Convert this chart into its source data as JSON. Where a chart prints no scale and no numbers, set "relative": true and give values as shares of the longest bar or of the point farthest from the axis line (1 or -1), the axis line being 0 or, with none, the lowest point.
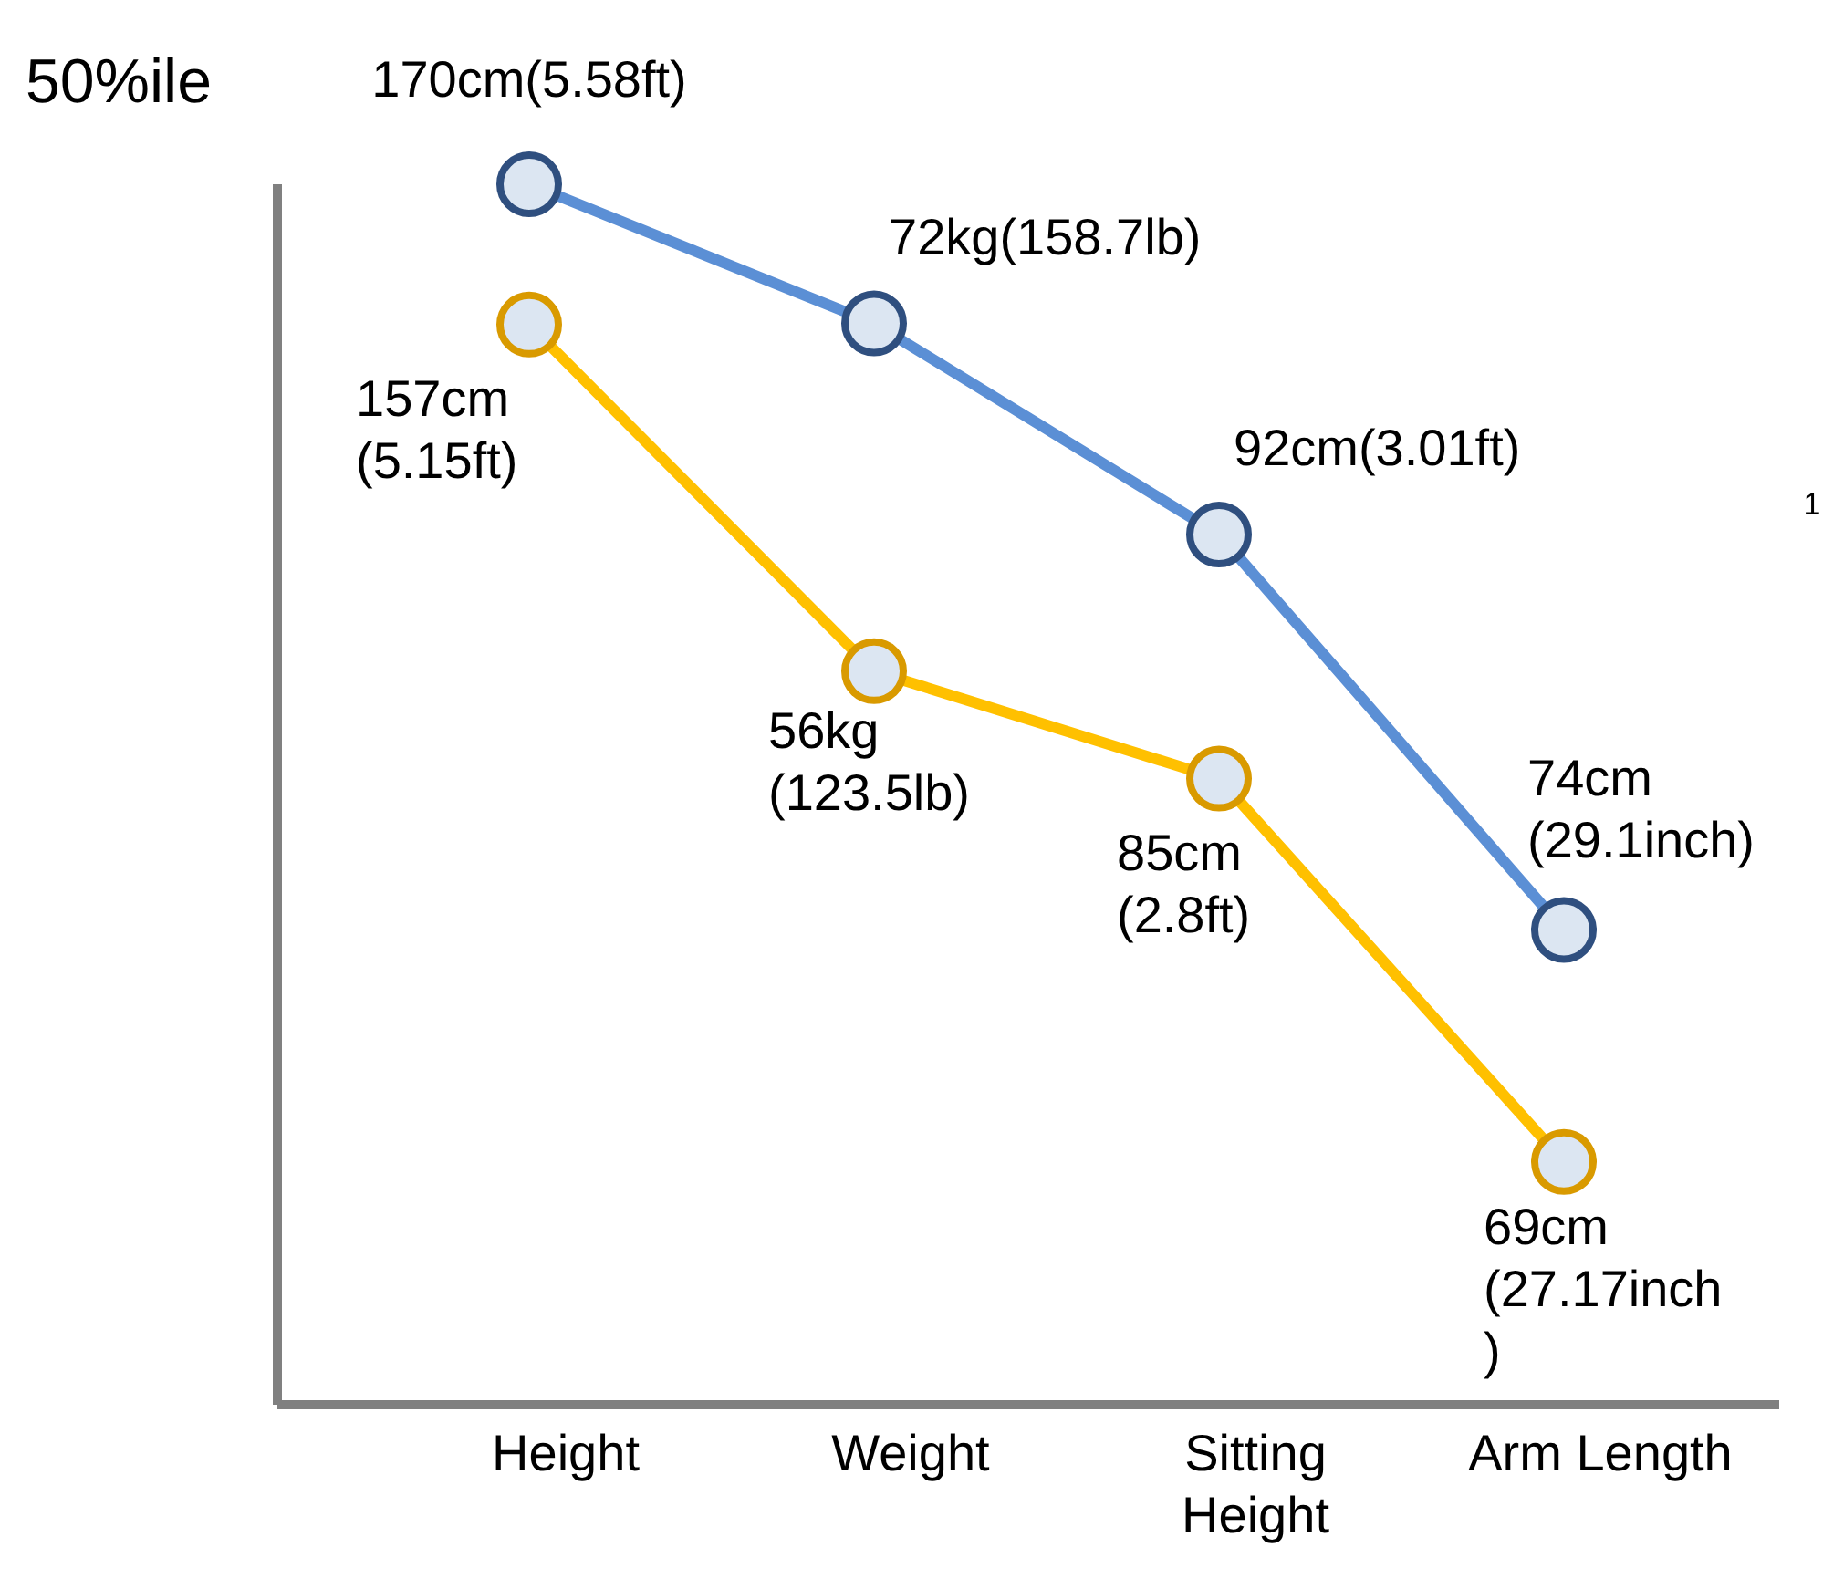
{
  "chart_data": {
    "type": "line",
    "relative": true,
    "ylabel": "50%ile",
    "categories": [
      "Height",
      "Weight",
      "Sitting Height",
      "Arm Length"
    ],
    "marker": "circle",
    "series": [
      {
        "color": "#5b8fd5",
        "values": [
          1,
          0.886,
          0.713,
          0.389
        ]
      },
      {
        "color": "#ffc000",
        "values": [
          0.885,
          0.601,
          0.513,
          0.199
        ]
      }
    ],
    "annotations": [
      {
        "text": "170cm(5.58ft)",
        "x": "Height",
        "y": 1
      },
      {
        "text": "72kg(158.7lb)",
        "x": "Weight",
        "y": 0.886
      },
      {
        "text": "92cm(3.01ft)",
        "x": "Sitting Height",
        "y": 0.713
      },
      {
        "text": "74cm\n(29.1inch)",
        "x": "Arm Length",
        "y": 0.389
      },
      {
        "text": "157cm\n(5.15ft)",
        "x": "Height",
        "y": 0.885
      },
      {
        "text": "56kg\n(123.5lb)",
        "x": "Weight",
        "y": 0.601
      },
      {
        "text": "85cm\n(2.8ft)",
        "x": "Sitting Height",
        "y": 0.513
      },
      {
        "text": "69cm\n(27.17inch\n)",
        "x": "Arm Length",
        "y": 0.199
      },
      "1"
    ]
  }
}
